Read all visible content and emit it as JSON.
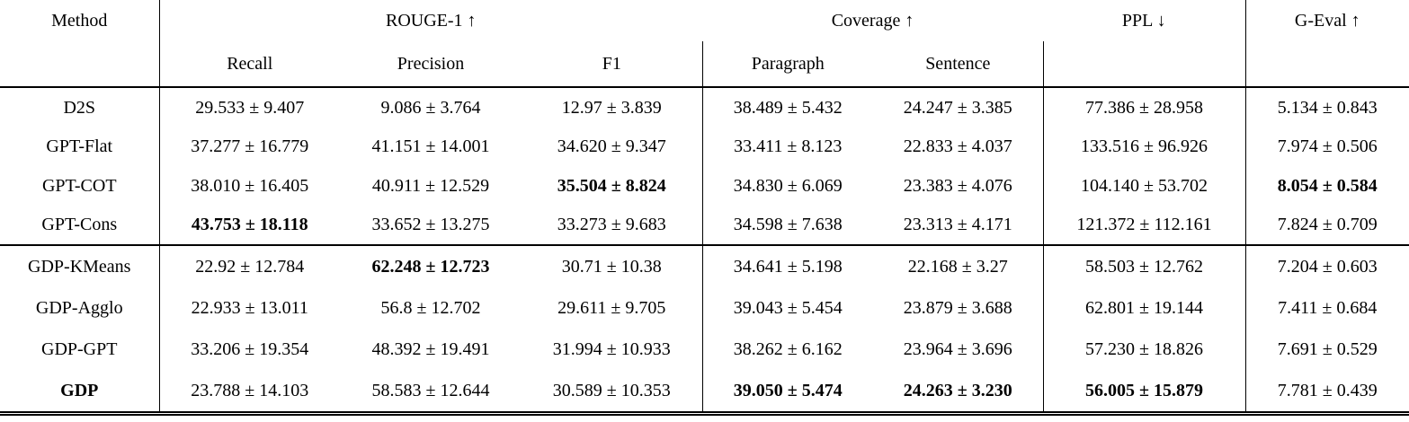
{
  "table": {
    "header": {
      "method": "Method",
      "rouge1": "ROUGE-1 ↑",
      "coverage": "Coverage ↑",
      "ppl": "PPL ↓",
      "geval": "G-Eval ↑",
      "recall": "Recall",
      "precision": "Precision",
      "f1": "F1",
      "paragraph": "Paragraph",
      "sentence": "Sentence"
    },
    "rows": [
      {
        "method": {
          "text": "D2S",
          "bold": false
        },
        "group_start": false,
        "values": [
          {
            "text": "29.533 ± 9.407",
            "bold": false
          },
          {
            "text": "9.086 ± 3.764",
            "bold": false
          },
          {
            "text": "12.97 ± 3.839",
            "bold": false
          },
          {
            "text": "38.489 ± 5.432",
            "bold": false
          },
          {
            "text": "24.247 ± 3.385",
            "bold": false
          },
          {
            "text": "77.386 ± 28.958",
            "bold": false
          },
          {
            "text": "5.134 ± 0.843",
            "bold": false
          }
        ]
      },
      {
        "method": {
          "text": "GPT-Flat",
          "bold": false
        },
        "group_start": false,
        "values": [
          {
            "text": "37.277 ± 16.779",
            "bold": false
          },
          {
            "text": "41.151 ± 14.001",
            "bold": false
          },
          {
            "text": "34.620 ± 9.347",
            "bold": false
          },
          {
            "text": "33.411 ± 8.123",
            "bold": false
          },
          {
            "text": "22.833 ± 4.037",
            "bold": false
          },
          {
            "text": "133.516 ± 96.926",
            "bold": false
          },
          {
            "text": "7.974 ± 0.506",
            "bold": false
          }
        ]
      },
      {
        "method": {
          "text": "GPT-COT",
          "bold": false
        },
        "group_start": false,
        "values": [
          {
            "text": "38.010 ± 16.405",
            "bold": false
          },
          {
            "text": "40.911 ± 12.529",
            "bold": false
          },
          {
            "text": "35.504 ± 8.824",
            "bold": true
          },
          {
            "text": "34.830 ± 6.069",
            "bold": false
          },
          {
            "text": "23.383 ± 4.076",
            "bold": false
          },
          {
            "text": "104.140 ± 53.702",
            "bold": false
          },
          {
            "text": "8.054 ± 0.584",
            "bold": true
          }
        ]
      },
      {
        "method": {
          "text": "GPT-Cons",
          "bold": false
        },
        "group_start": false,
        "values": [
          {
            "text": "43.753 ± 18.118",
            "bold": true
          },
          {
            "text": "33.652 ± 13.275",
            "bold": false
          },
          {
            "text": "33.273 ± 9.683",
            "bold": false
          },
          {
            "text": "34.598 ± 7.638",
            "bold": false
          },
          {
            "text": "23.313 ± 4.171",
            "bold": false
          },
          {
            "text": "121.372 ± 112.161",
            "bold": false
          },
          {
            "text": "7.824 ± 0.709",
            "bold": false
          }
        ]
      },
      {
        "method": {
          "text": "GDP-KMeans",
          "bold": false
        },
        "group_start": true,
        "values": [
          {
            "text": "22.92 ± 12.784",
            "bold": false
          },
          {
            "text": "62.248 ± 12.723",
            "bold": true
          },
          {
            "text": "30.71 ± 10.38",
            "bold": false
          },
          {
            "text": "34.641 ± 5.198",
            "bold": false
          },
          {
            "text": "22.168 ± 3.27",
            "bold": false
          },
          {
            "text": "58.503 ± 12.762",
            "bold": false
          },
          {
            "text": "7.204 ± 0.603",
            "bold": false
          }
        ]
      },
      {
        "method": {
          "text": "GDP-Agglo",
          "bold": false
        },
        "group_start": false,
        "values": [
          {
            "text": "22.933 ± 13.011",
            "bold": false
          },
          {
            "text": "56.8 ± 12.702",
            "bold": false
          },
          {
            "text": "29.611 ± 9.705",
            "bold": false
          },
          {
            "text": "39.043 ± 5.454",
            "bold": false
          },
          {
            "text": "23.879 ± 3.688",
            "bold": false
          },
          {
            "text": "62.801 ± 19.144",
            "bold": false
          },
          {
            "text": "7.411 ± 0.684",
            "bold": false
          }
        ]
      },
      {
        "method": {
          "text": "GDP-GPT",
          "bold": false
        },
        "group_start": false,
        "values": [
          {
            "text": "33.206 ± 19.354",
            "bold": false
          },
          {
            "text": "48.392 ± 19.491",
            "bold": false
          },
          {
            "text": "31.994 ± 10.933",
            "bold": false
          },
          {
            "text": "38.262 ± 6.162",
            "bold": false
          },
          {
            "text": "23.964 ± 3.696",
            "bold": false
          },
          {
            "text": "57.230 ± 18.826",
            "bold": false
          },
          {
            "text": "7.691 ± 0.529",
            "bold": false
          }
        ]
      },
      {
        "method": {
          "text": "GDP",
          "bold": true
        },
        "group_start": false,
        "values": [
          {
            "text": "23.788 ± 14.103",
            "bold": false
          },
          {
            "text": "58.583 ± 12.644",
            "bold": false
          },
          {
            "text": "30.589 ± 10.353",
            "bold": false
          },
          {
            "text": "39.050 ± 5.474",
            "bold": true
          },
          {
            "text": "24.263 ± 3.230",
            "bold": true
          },
          {
            "text": "56.005 ± 15.879",
            "bold": true
          },
          {
            "text": "7.781 ± 0.439",
            "bold": false
          }
        ]
      }
    ]
  }
}
